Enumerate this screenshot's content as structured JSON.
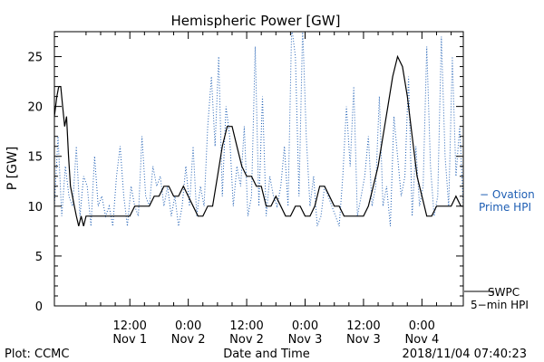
{
  "colors": {
    "swpc": "#000000",
    "ovation": "#1f5fb4",
    "axis": "#000000",
    "background": "#ffffff"
  },
  "footer": {
    "plot_credit": "Plot: CCMC",
    "timestamp": "2018/11/04 07:40:23"
  },
  "chart_data": {
    "type": "line",
    "title": "Hemispheric Power [GW]",
    "xlabel": "Date and Time",
    "ylabel": "P [GW]",
    "ylim": [
      0,
      27.5
    ],
    "xlim": [
      -3.5,
      80.5
    ],
    "x_units": "hours since 2018-11-01 00:00 UT",
    "y_ticks": [
      0,
      5,
      10,
      15,
      20,
      25
    ],
    "x_ticks": [
      {
        "t": 12,
        "time": "12:00",
        "date": "Nov 1"
      },
      {
        "t": 24,
        "time": "0:00",
        "date": "Nov 2"
      },
      {
        "t": 36,
        "time": "12:00",
        "date": "Nov 2"
      },
      {
        "t": 48,
        "time": "0:00",
        "date": "Nov 3"
      },
      {
        "t": 60,
        "time": "12:00",
        "date": "Nov 3"
      },
      {
        "t": 72,
        "time": "0:00",
        "date": "Nov 4"
      }
    ],
    "grid": false,
    "series": [
      {
        "name": "SWPC 5-min HPI",
        "label_lines": [
          "SWPC",
          "5−min HPI"
        ],
        "style": "solid",
        "x": [
          -3.5,
          -3.0,
          -2.6,
          -2.2,
          -1.8,
          -1.4,
          -1.0,
          -0.6,
          -0.2,
          0.2,
          0.6,
          1.0,
          1.5,
          2.0,
          2.5,
          3.0,
          3.5,
          4.0,
          4.5,
          5.0,
          5.5,
          6.0,
          7.0,
          8.0,
          9.0,
          10.0,
          11.0,
          12.0,
          13.0,
          14.0,
          15.0,
          16.0,
          17.0,
          18.0,
          19.0,
          20.0,
          21.0,
          22.0,
          23.0,
          24.0,
          25.0,
          26.0,
          27.0,
          28.0,
          29.0,
          30.0,
          31.0,
          32.0,
          33.0,
          34.0,
          35.0,
          36.0,
          37.0,
          38.0,
          39.0,
          40.0,
          41.0,
          42.0,
          43.0,
          44.0,
          45.0,
          46.0,
          47.0,
          48.0,
          49.0,
          50.0,
          51.0,
          52.0,
          53.0,
          54.0,
          55.0,
          56.0,
          57.0,
          58.0,
          59.0,
          60.0,
          61.0,
          62.0,
          63.0,
          64.0,
          65.0,
          66.0,
          67.0,
          68.0,
          69.0,
          70.0,
          71.0,
          72.0,
          73.0,
          74.0,
          75.0,
          76.0,
          77.0,
          78.0,
          79.0,
          80.0,
          80.5
        ],
        "y": [
          19,
          21,
          22,
          22,
          20,
          18,
          19,
          15,
          12,
          11,
          10,
          9,
          8,
          9,
          8,
          9,
          9,
          9,
          9,
          9,
          9,
          9,
          9,
          9,
          9,
          9,
          9,
          9,
          10,
          10,
          10,
          10,
          11,
          11,
          12,
          12,
          11,
          11,
          12,
          11,
          10,
          9,
          9,
          10,
          10,
          13,
          16,
          18,
          18,
          16,
          14,
          13,
          13,
          12,
          12,
          10,
          10,
          11,
          10,
          9,
          9,
          10,
          10,
          9,
          9,
          10,
          12,
          12,
          11,
          10,
          10,
          9,
          9,
          9,
          9,
          9,
          10,
          12,
          14,
          17,
          20,
          23,
          25,
          24,
          21,
          17,
          13,
          11,
          9,
          9,
          10,
          10,
          10,
          10,
          11,
          10,
          10
        ]
      },
      {
        "name": "Ovation Prime HPI",
        "label_lines": [
          "− Ovation",
          "Prime HPI"
        ],
        "style": "dotted",
        "x": [
          -3.5,
          -2.75,
          -2.0,
          -1.25,
          -0.5,
          0.25,
          1.0,
          1.75,
          2.5,
          3.25,
          4.0,
          4.75,
          5.5,
          6.25,
          7.0,
          7.75,
          8.5,
          9.25,
          10.0,
          10.75,
          11.5,
          12.25,
          13.0,
          13.75,
          14.5,
          15.25,
          16.0,
          16.75,
          17.5,
          18.25,
          19.0,
          19.75,
          20.5,
          21.25,
          22.0,
          22.75,
          23.5,
          24.25,
          25.0,
          25.75,
          26.5,
          27.25,
          28.0,
          28.75,
          29.5,
          30.25,
          31.0,
          31.75,
          32.5,
          33.25,
          34.0,
          34.75,
          35.5,
          36.25,
          37.0,
          37.75,
          38.5,
          39.25,
          40.0,
          40.75,
          41.5,
          42.25,
          43.0,
          43.75,
          44.5,
          45.25,
          46.0,
          46.75,
          47.5,
          48.25,
          49.0,
          49.75,
          50.5,
          51.25,
          52.0,
          52.75,
          53.5,
          54.25,
          55.0,
          55.75,
          56.5,
          57.25,
          58.0,
          58.75,
          59.5,
          60.25,
          61.0,
          61.75,
          62.5,
          63.25,
          64.0,
          64.75,
          65.5,
          66.25,
          67.0,
          67.75,
          68.5,
          69.25,
          70.0,
          70.75,
          71.5,
          72.25,
          73.0,
          73.75,
          74.5,
          75.25,
          76.0,
          76.75,
          77.5,
          78.25,
          79.0,
          79.75,
          80.5
        ],
        "y": [
          10,
          17,
          9,
          14,
          11,
          10,
          16,
          9,
          13,
          12,
          8,
          15,
          10,
          11,
          9,
          10,
          8,
          13,
          16,
          11,
          8,
          12,
          10,
          9,
          17,
          11,
          10,
          14,
          12,
          13,
          10,
          12,
          9,
          11,
          8,
          10,
          14,
          10,
          16,
          9,
          12,
          10,
          18,
          23,
          16,
          25,
          11,
          20,
          17,
          10,
          14,
          12,
          18,
          9,
          11,
          26,
          10,
          21,
          9,
          13,
          11,
          10,
          12,
          16,
          10,
          28,
          25,
          11,
          28,
          17,
          10,
          13,
          8,
          9,
          12,
          11,
          10,
          9,
          8,
          13,
          20,
          14,
          22,
          9,
          11,
          13,
          17,
          10,
          12,
          21,
          10,
          12,
          8,
          19,
          15,
          11,
          13,
          23,
          9,
          16,
          10,
          12,
          26,
          14,
          9,
          11,
          27,
          15,
          10,
          25,
          13,
          18,
          10
        ]
      }
    ]
  }
}
